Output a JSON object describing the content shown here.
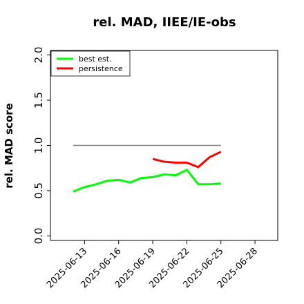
{
  "chart_data": {
    "type": "line",
    "title": "rel. MAD, IIEE/IE-obs",
    "y_label": "rel. MAD score",
    "x": [
      "2025-06-12",
      "2025-06-13",
      "2025-06-14",
      "2025-06-15",
      "2025-06-16",
      "2025-06-17",
      "2025-06-18",
      "2025-06-19",
      "2025-06-20",
      "2025-06-21",
      "2025-06-22",
      "2025-06-23",
      "2025-06-24",
      "2025-06-25"
    ],
    "series": [
      {
        "color": "#808080",
        "values": [
          1.0,
          1.0,
          1.0,
          1.0,
          1.0,
          1.0,
          1.0,
          1.0,
          1.0,
          1.0,
          1.0,
          1.0,
          1.0,
          1.0
        ]
      },
      {
        "name": "best est.",
        "color": "#00ff00",
        "values": [
          0.49,
          0.54,
          0.57,
          0.61,
          0.62,
          0.59,
          0.64,
          0.65,
          0.68,
          0.67,
          0.73,
          0.57,
          0.57,
          0.58
        ]
      },
      {
        "name": "persistence",
        "color": "#ff0000",
        "values": [
          null,
          null,
          null,
          null,
          null,
          null,
          null,
          0.85,
          0.82,
          0.81,
          0.81,
          0.76,
          0.87,
          0.93
        ]
      }
    ],
    "xlim": [
      "2025-06-10",
      "2025-06-30"
    ],
    "xticks": [
      "2025-06-13",
      "2025-06-16",
      "2025-06-19",
      "2025-06-22",
      "2025-06-25",
      "2025-06-28"
    ],
    "ylim": [
      -0.05,
      2.05
    ],
    "yticks": [
      {
        "value": 0,
        "label": "0.0"
      },
      {
        "value": 0.5,
        "label": "0.5"
      },
      {
        "value": 1,
        "label": "1.0"
      },
      {
        "value": 1.5,
        "label": "1.5"
      },
      {
        "value": 2,
        "label": "2.0"
      }
    ],
    "legend": "upper left"
  }
}
